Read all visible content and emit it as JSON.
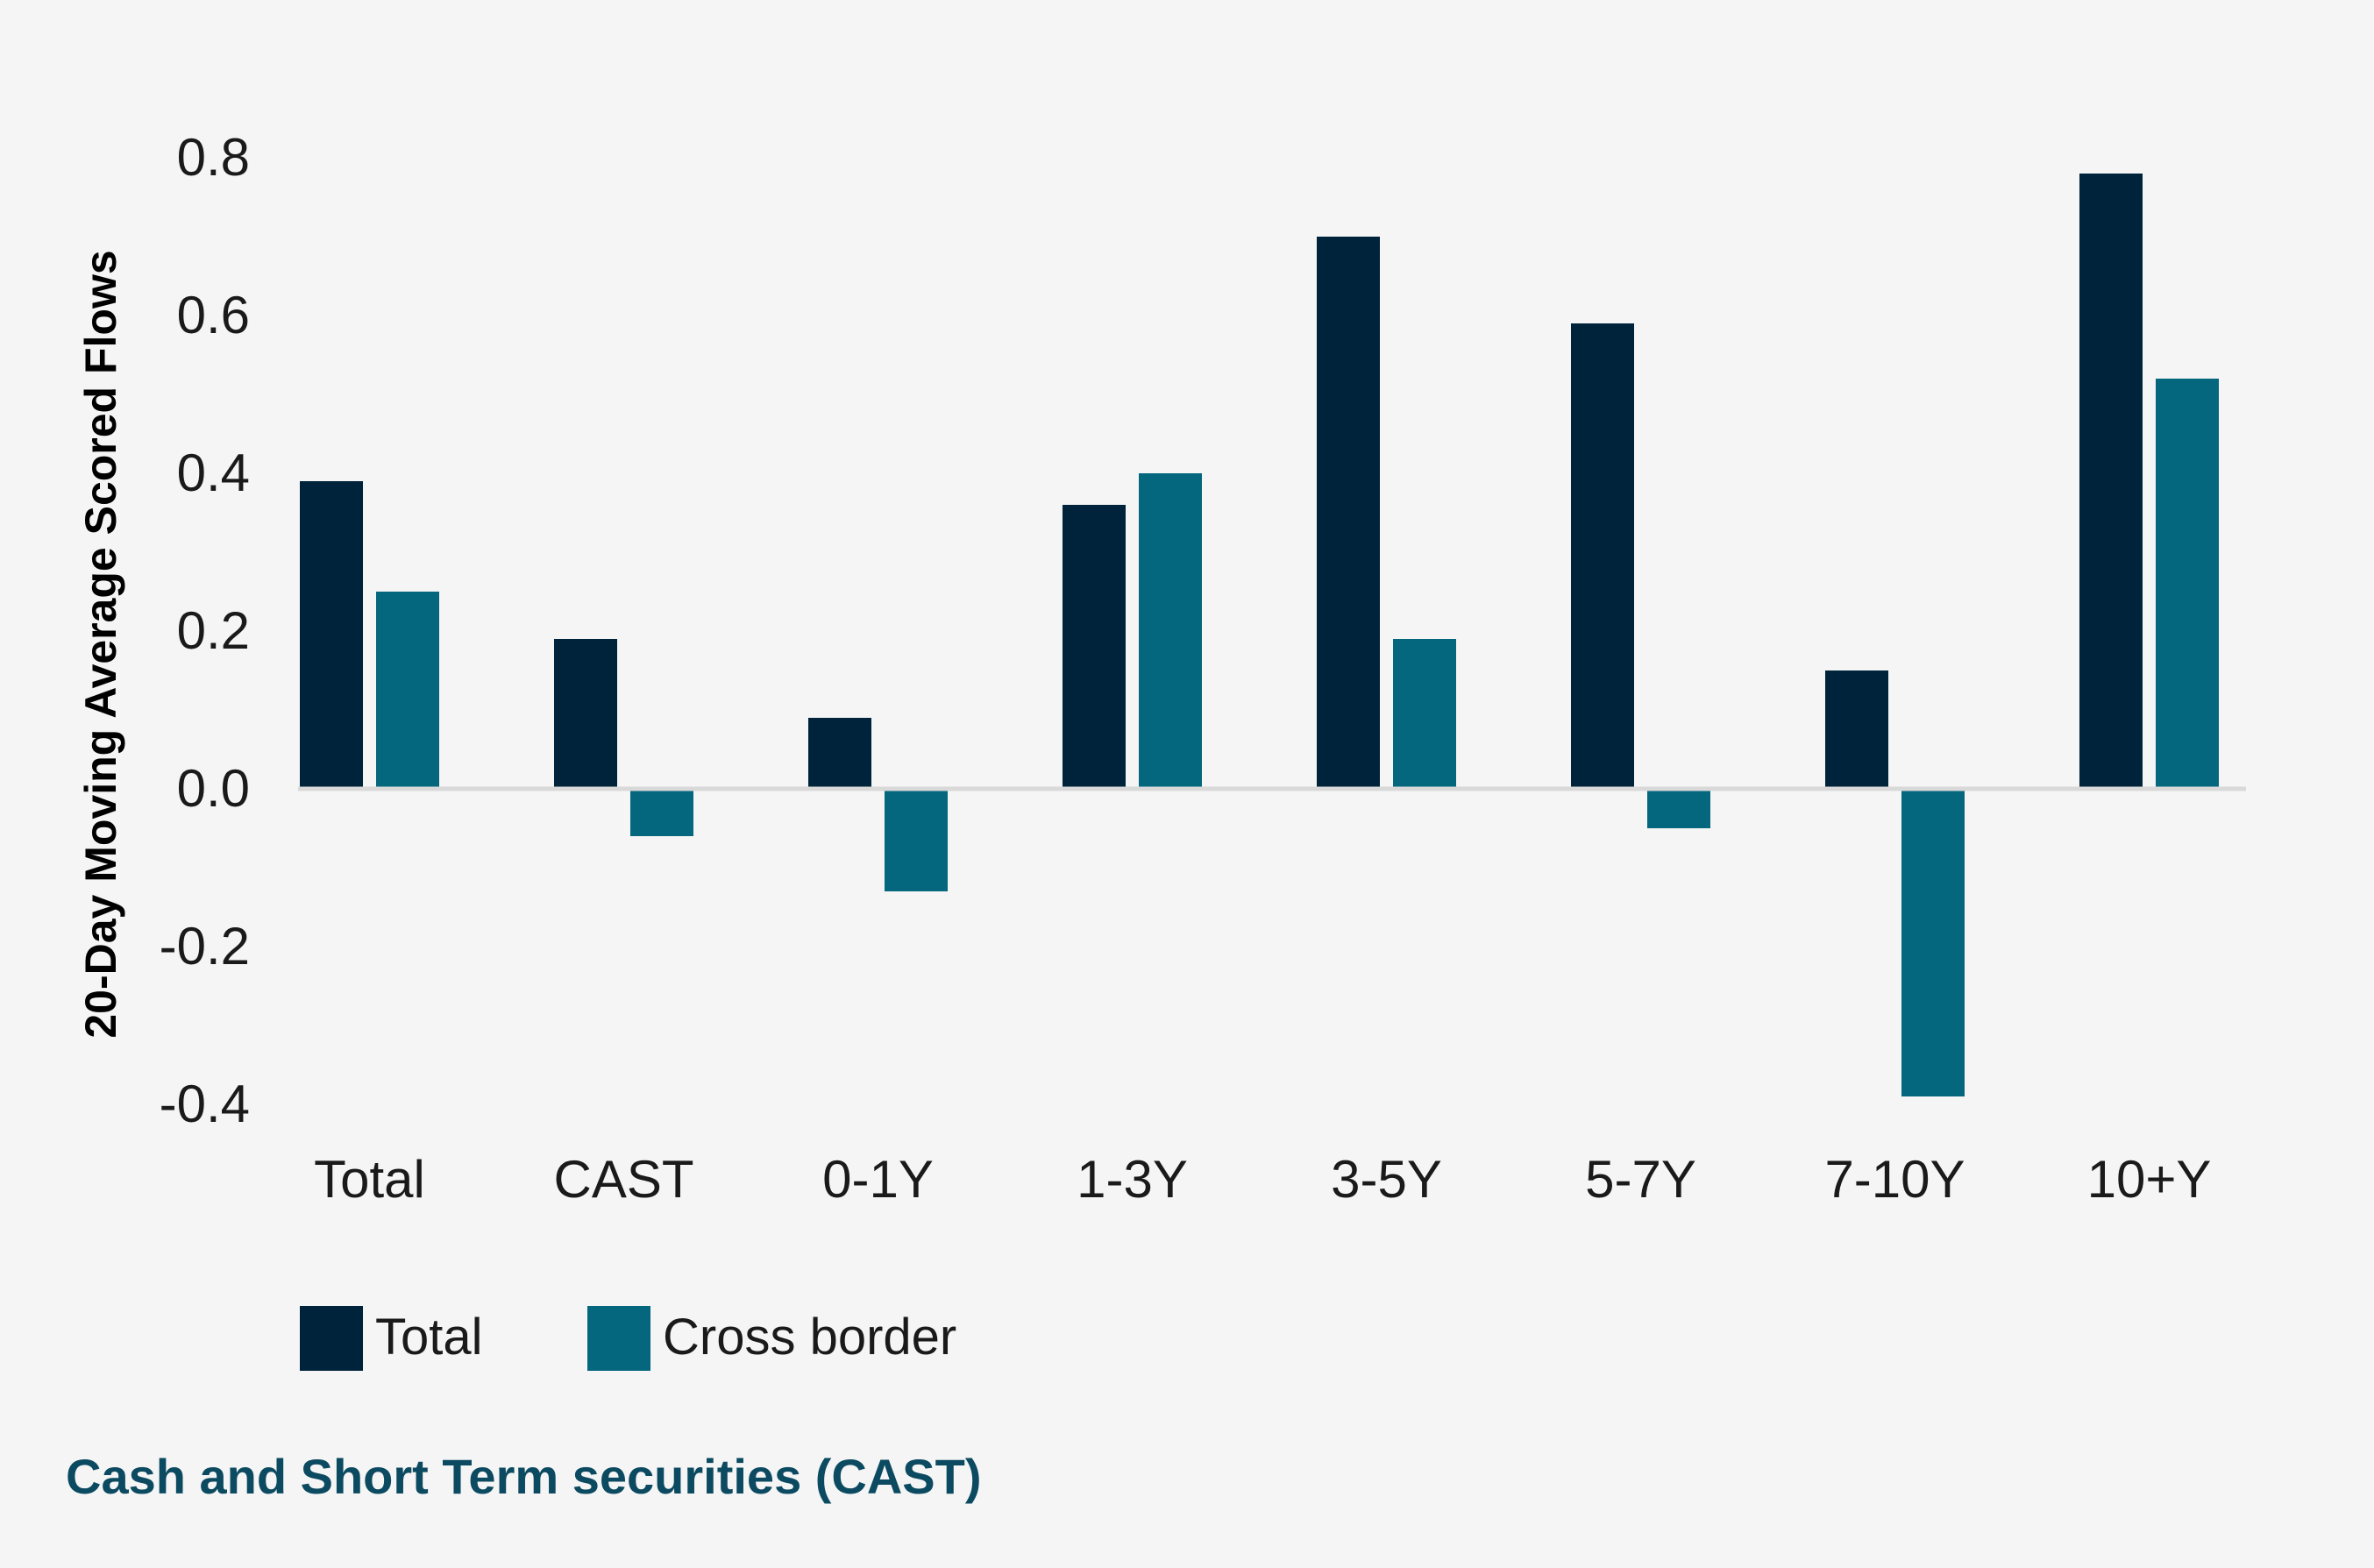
{
  "chart_data": {
    "type": "bar",
    "title": "",
    "xlabel": "",
    "ylabel": "20-Day Moving Average Scored Flows",
    "ylim": [
      -0.4,
      0.8
    ],
    "yticks": [
      0.8,
      0.6,
      0.4,
      0.2,
      0.0,
      -0.2,
      -0.4
    ],
    "ytick_labels": [
      "0.8",
      "0.6",
      "0.4",
      "0.2",
      "0.0",
      "-0.2",
      "-0.4"
    ],
    "grid": false,
    "legend_position": "bottom-left",
    "categories": [
      "Total",
      "CAST",
      "0-1Y",
      "1-3Y",
      "3-5Y",
      "5-7Y",
      "7-10Y",
      "10+Y"
    ],
    "series": [
      {
        "name": "Total",
        "color": "#00233c",
        "values": [
          0.39,
          0.19,
          0.09,
          0.36,
          0.7,
          0.59,
          0.15,
          0.78
        ]
      },
      {
        "name": "Cross border",
        "color": "#04677e",
        "values": [
          0.25,
          -0.06,
          -0.13,
          0.4,
          0.19,
          -0.05,
          -0.39,
          0.52
        ]
      }
    ]
  },
  "footnote": {
    "text": "Cash and Short Term securities (CAST)",
    "color": "#0b4a60"
  },
  "colors": {
    "background": "#f5f5f5",
    "zero_line": "#d9d9d9"
  }
}
